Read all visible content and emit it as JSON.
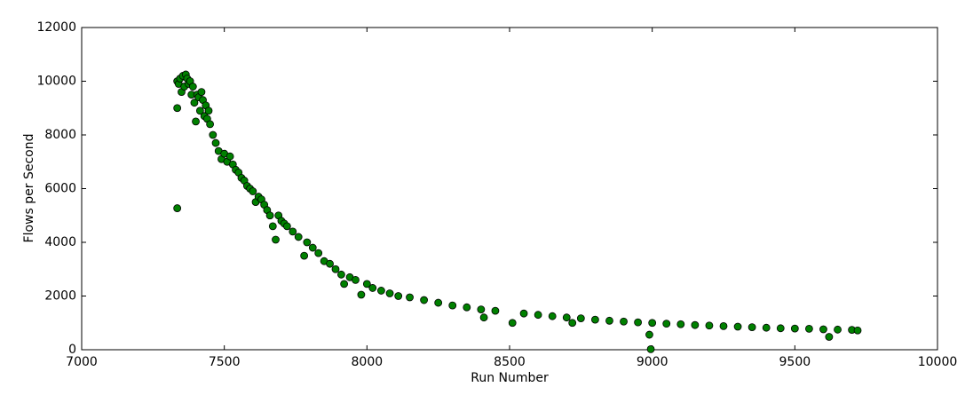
{
  "chart_data": {
    "type": "scatter",
    "x_label": "Run Number",
    "y_label": "Flows per Second",
    "xlim": [
      7000,
      10000
    ],
    "xticks": [
      7000,
      7500,
      8000,
      8500,
      9000,
      9500,
      10000
    ],
    "ylim": [
      0,
      12000
    ],
    "yticks": [
      0,
      2000,
      4000,
      6000,
      8000,
      10000,
      12000
    ],
    "grid": false,
    "series": [
      {
        "color": "#008000",
        "x": [
          7335,
          7335,
          7335,
          7340,
          7345,
          7350,
          7355,
          7360,
          7365,
          7370,
          7375,
          7380,
          7385,
          7390,
          7395,
          7400,
          7405,
          7410,
          7415,
          7420,
          7425,
          7430,
          7435,
          7440,
          7445,
          7450,
          7460,
          7470,
          7480,
          7490,
          7500,
          7510,
          7520,
          7530,
          7540,
          7550,
          7560,
          7570,
          7580,
          7590,
          7600,
          7610,
          7620,
          7630,
          7640,
          7650,
          7660,
          7670,
          7680,
          7690,
          7700,
          7710,
          7720,
          7740,
          7760,
          7780,
          7790,
          7810,
          7830,
          7850,
          7870,
          7890,
          7910,
          7920,
          7940,
          7960,
          7980,
          8000,
          8020,
          8050,
          8080,
          8110,
          8150,
          8200,
          8250,
          8300,
          8350,
          8400,
          8410,
          8450,
          8510,
          8550,
          8600,
          8650,
          8700,
          8720,
          8750,
          8800,
          8850,
          8900,
          8950,
          8990,
          8995,
          9000,
          9050,
          9100,
          9150,
          9200,
          9250,
          9300,
          9350,
          9400,
          9450,
          9500,
          9550,
          9600,
          9620,
          9650,
          9700,
          9720
        ],
        "values": [
          10000,
          9000,
          5270,
          9900,
          10100,
          9600,
          10200,
          9800,
          10250,
          10100,
          9900,
          10000,
          9500,
          9800,
          9200,
          8500,
          9500,
          9400,
          8900,
          9600,
          9300,
          8700,
          9100,
          8600,
          8900,
          8400,
          8000,
          7700,
          7400,
          7100,
          7300,
          7000,
          7200,
          6900,
          6700,
          6600,
          6400,
          6300,
          6100,
          6000,
          5900,
          5500,
          5700,
          5600,
          5400,
          5200,
          5000,
          4600,
          4100,
          5000,
          4800,
          4700,
          4600,
          4400,
          4200,
          3500,
          4000,
          3800,
          3600,
          3300,
          3200,
          3000,
          2800,
          2450,
          2700,
          2600,
          2050,
          2450,
          2300,
          2200,
          2100,
          2000,
          1950,
          1850,
          1750,
          1650,
          1580,
          1500,
          1200,
          1450,
          1000,
          1350,
          1300,
          1250,
          1200,
          1000,
          1170,
          1120,
          1080,
          1050,
          1020,
          560,
          20,
          1000,
          970,
          950,
          920,
          900,
          880,
          860,
          840,
          820,
          800,
          790,
          780,
          760,
          480,
          750,
          740,
          720
        ]
      }
    ]
  }
}
